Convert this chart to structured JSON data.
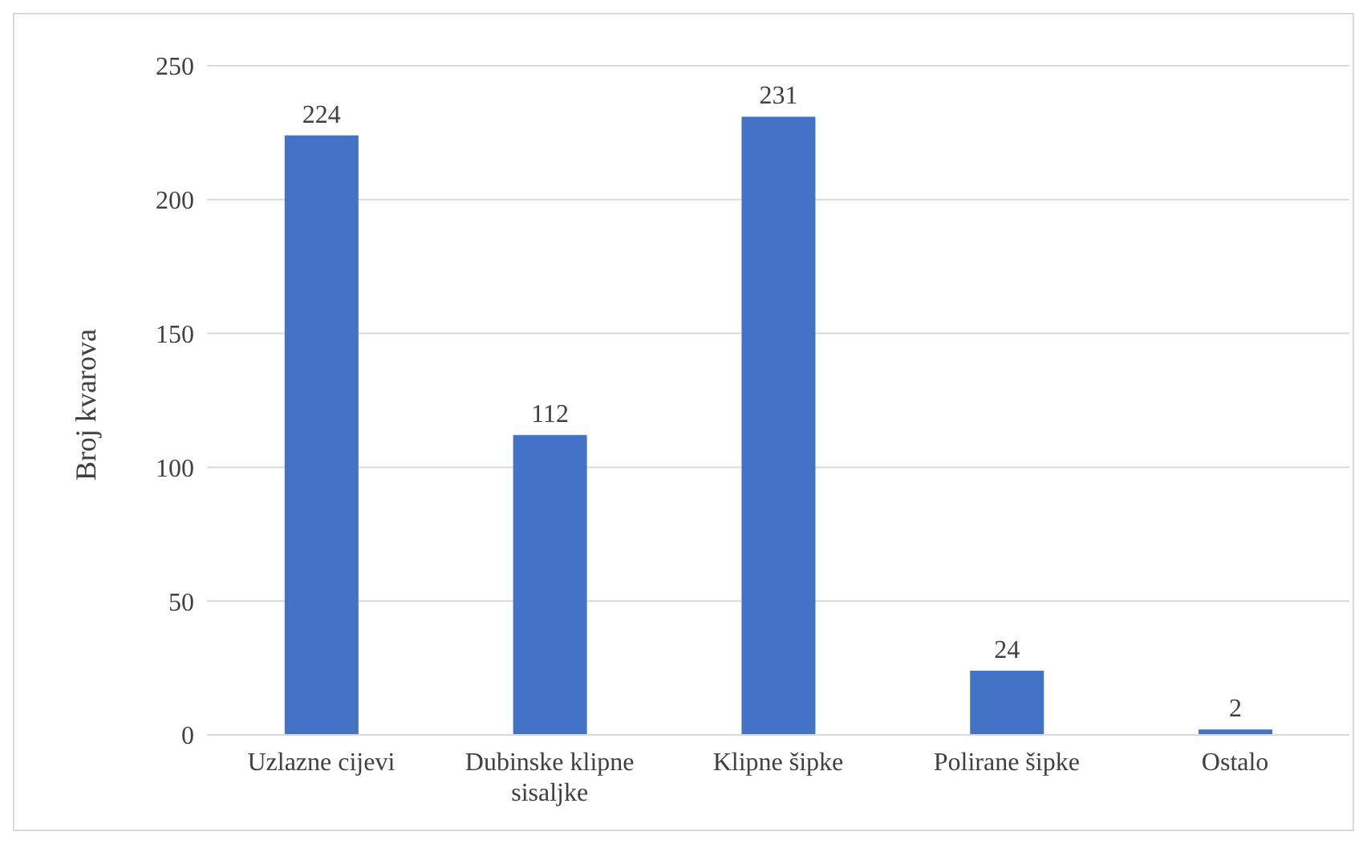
{
  "chart_data": {
    "type": "bar",
    "ylabel": "Broj kvarova",
    "categories": [
      "Uzlazne cijevi",
      "Dubinske klipne sisaljke",
      "Klipne šipke",
      "Polirane šipke",
      "Ostalo"
    ],
    "values": [
      224,
      112,
      231,
      24,
      2
    ],
    "color": "#4472c4",
    "ylim": [
      0,
      250
    ],
    "yticks": [
      0,
      50,
      100,
      150,
      200,
      250
    ],
    "grid": "y",
    "data_labels": true
  }
}
